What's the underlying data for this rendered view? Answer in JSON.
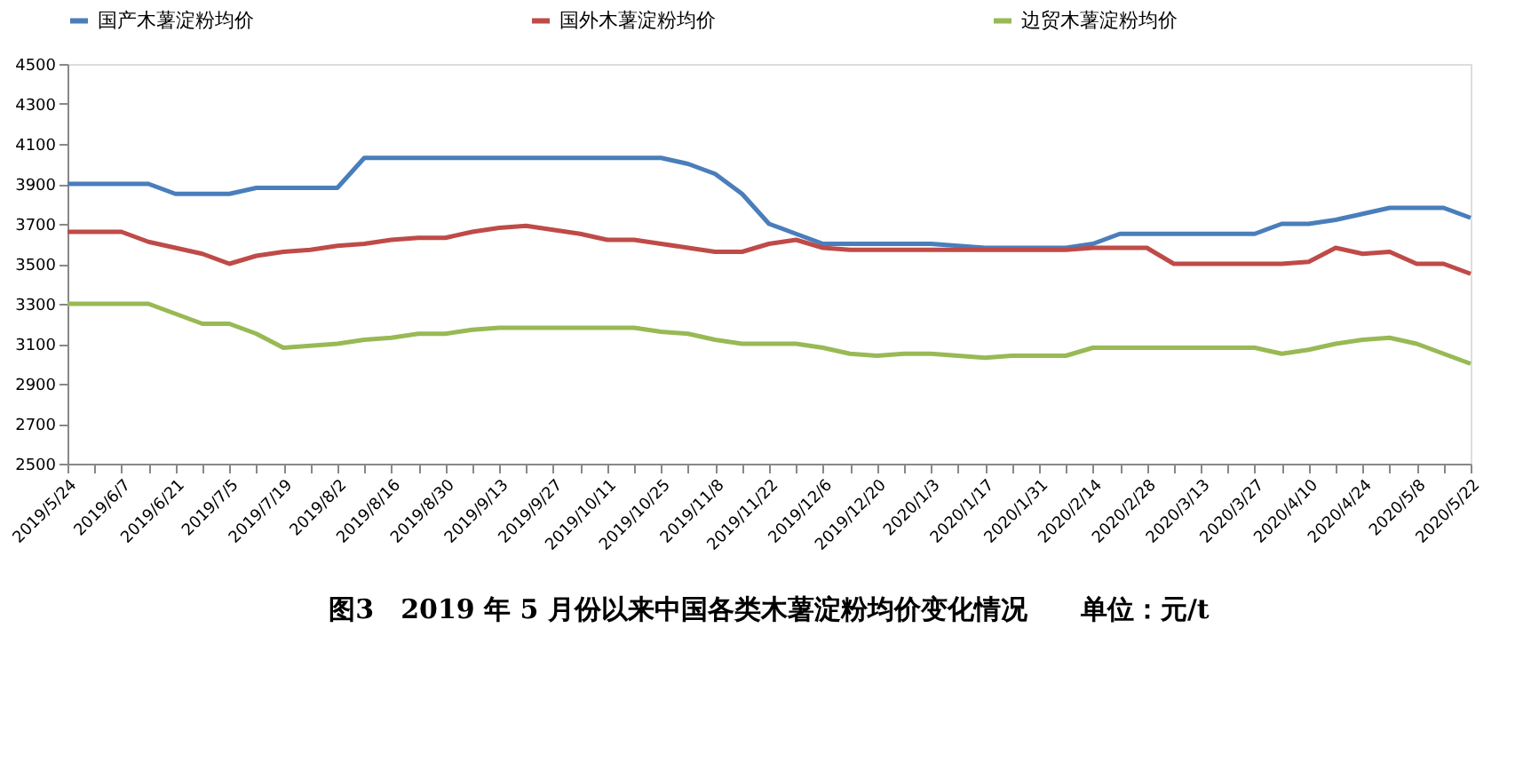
{
  "chart_data": {
    "type": "line",
    "title": "图3　2019 年 5 月份以来中国各类木薯淀粉均价变化情况　　单位：元/t",
    "categories": [
      "2019/5/24",
      null,
      "2019/6/7",
      null,
      "2019/6/21",
      null,
      "2019/7/5",
      null,
      "2019/7/19",
      null,
      "2019/8/2",
      null,
      "2019/8/16",
      null,
      "2019/8/30",
      null,
      "2019/9/13",
      null,
      "2019/9/27",
      null,
      "2019/10/11",
      null,
      "2019/10/25",
      null,
      "2019/11/8",
      null,
      "2019/11/22",
      null,
      "2019/12/6",
      null,
      "2019/12/20",
      null,
      "2020/1/3",
      null,
      "2020/1/17",
      null,
      "2020/1/31",
      null,
      "2020/2/14",
      null,
      "2020/2/28",
      null,
      "2020/3/13",
      null,
      "2020/3/27",
      null,
      "2020/4/10",
      null,
      "2020/4/24",
      null,
      "2020/5/8",
      null,
      "2020/5/22"
    ],
    "series": [
      {
        "name": "国产木薯淀粉均价",
        "color": "#4a7ebb",
        "values": [
          3900,
          3900,
          3900,
          3900,
          3850,
          3850,
          3850,
          3880,
          3880,
          3880,
          3880,
          4030,
          4030,
          4030,
          4030,
          4030,
          4030,
          4030,
          4030,
          4030,
          4030,
          4030,
          4030,
          4000,
          3950,
          3850,
          3700,
          3650,
          3600,
          3600,
          3600,
          3600,
          3600,
          3590,
          3580,
          3580,
          3580,
          3580,
          3600,
          3650,
          3650,
          3650,
          3650,
          3650,
          3650,
          3700,
          3700,
          3720,
          3750,
          3780,
          3780,
          3780,
          3730
        ]
      },
      {
        "name": "国外木薯淀粉均价",
        "color": "#be4b48",
        "values": [
          3660,
          3660,
          3660,
          3610,
          3580,
          3550,
          3500,
          3540,
          3560,
          3570,
          3590,
          3600,
          3620,
          3630,
          3630,
          3660,
          3680,
          3690,
          3670,
          3650,
          3620,
          3620,
          3600,
          3580,
          3560,
          3560,
          3600,
          3620,
          3580,
          3570,
          3570,
          3570,
          3570,
          3570,
          3570,
          3570,
          3570,
          3570,
          3580,
          3580,
          3580,
          3500,
          3500,
          3500,
          3500,
          3500,
          3510,
          3580,
          3550,
          3560,
          3500,
          3500,
          3450
        ]
      },
      {
        "name": "边贸木薯淀粉均价",
        "color": "#98b954",
        "values": [
          3300,
          3300,
          3300,
          3300,
          3250,
          3200,
          3200,
          3150,
          3080,
          3090,
          3100,
          3120,
          3130,
          3150,
          3150,
          3170,
          3180,
          3180,
          3180,
          3180,
          3180,
          3180,
          3160,
          3150,
          3120,
          3100,
          3100,
          3100,
          3080,
          3050,
          3040,
          3050,
          3050,
          3040,
          3030,
          3040,
          3040,
          3040,
          3080,
          3080,
          3080,
          3080,
          3080,
          3080,
          3080,
          3050,
          3070,
          3100,
          3120,
          3130,
          3100,
          3050,
          3000
        ]
      }
    ],
    "ylim": [
      2500,
      4500
    ],
    "yticks": [
      2500,
      2700,
      2900,
      3100,
      3300,
      3500,
      3700,
      3900,
      4100,
      4300,
      4500
    ],
    "grid": false,
    "legend": "top",
    "marker": "none",
    "line_style": "solid"
  }
}
